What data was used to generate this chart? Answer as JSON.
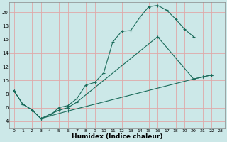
{
  "xlabel": "Humidex (Indice chaleur)",
  "bg_color": "#cce8e8",
  "grid_color": "#e0a8a8",
  "line_color": "#1a6b5a",
  "xlim": [
    -0.5,
    23.5
  ],
  "ylim": [
    3.0,
    21.5
  ],
  "xticks": [
    0,
    1,
    2,
    3,
    4,
    5,
    6,
    7,
    8,
    9,
    10,
    11,
    12,
    13,
    14,
    15,
    16,
    17,
    18,
    19,
    20,
    21,
    22,
    23
  ],
  "yticks": [
    4,
    6,
    8,
    10,
    12,
    14,
    16,
    18,
    20
  ],
  "line1_x": [
    0,
    1,
    2,
    3,
    4,
    5,
    6,
    7,
    8,
    9,
    10,
    11,
    12,
    13,
    14,
    15,
    16,
    17,
    18,
    19,
    20
  ],
  "line1_y": [
    8.5,
    6.5,
    5.7,
    4.4,
    4.8,
    6.0,
    6.3,
    7.3,
    9.3,
    9.7,
    11.1,
    15.6,
    17.2,
    17.3,
    19.2,
    20.8,
    21.0,
    20.3,
    19.0,
    17.5,
    16.4
  ],
  "line2_x": [
    0,
    1,
    2,
    3,
    4,
    5,
    6,
    7,
    16,
    20,
    21,
    22
  ],
  "line2_y": [
    8.5,
    6.5,
    5.7,
    4.4,
    5.0,
    5.6,
    6.0,
    6.8,
    16.4,
    10.2,
    10.5,
    10.8
  ],
  "line3_x": [
    3,
    6,
    20,
    21,
    22
  ],
  "line3_y": [
    4.4,
    5.5,
    10.2,
    10.5,
    10.8
  ]
}
